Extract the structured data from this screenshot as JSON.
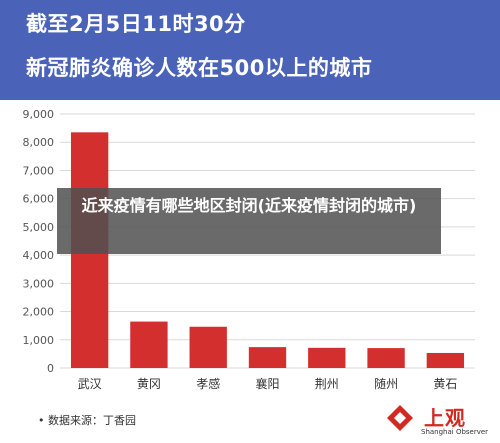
{
  "header": {
    "line1": "截至2月5日11时30分",
    "line2": "新冠肺炎确诊人数在500以上的城市"
  },
  "overlay": {
    "text": "近来疫情有哪些地区封闭(近来疫情封闭的城市)"
  },
  "footer": {
    "source": "• 数据来源：丁香园"
  },
  "logo": {
    "name": "上观",
    "subtitle": "Shanghai Observer",
    "color": "#d22a22"
  },
  "colors": {
    "header_bg": "#4a63b8",
    "bar": "#d32f2f",
    "plot_bg": "#ffffff"
  },
  "chart_data": {
    "type": "bar",
    "categories": [
      "武汉",
      "黄冈",
      "孝感",
      "襄阳",
      "荆州",
      "随州",
      "黄石"
    ],
    "values": [
      8351,
      1645,
      1462,
      740,
      715,
      705,
      533
    ],
    "title": "截至2月5日11时30分 新冠肺炎确诊人数在500以上的城市",
    "xlabel": "",
    "ylabel": "",
    "ylim": [
      0,
      9000
    ],
    "yticks": [
      "0",
      "1,000",
      "2,000",
      "3,000",
      "4,000",
      "5,000",
      "6,000",
      "7,000",
      "8,000",
      "9,000"
    ],
    "grid": true,
    "legend": "none"
  }
}
